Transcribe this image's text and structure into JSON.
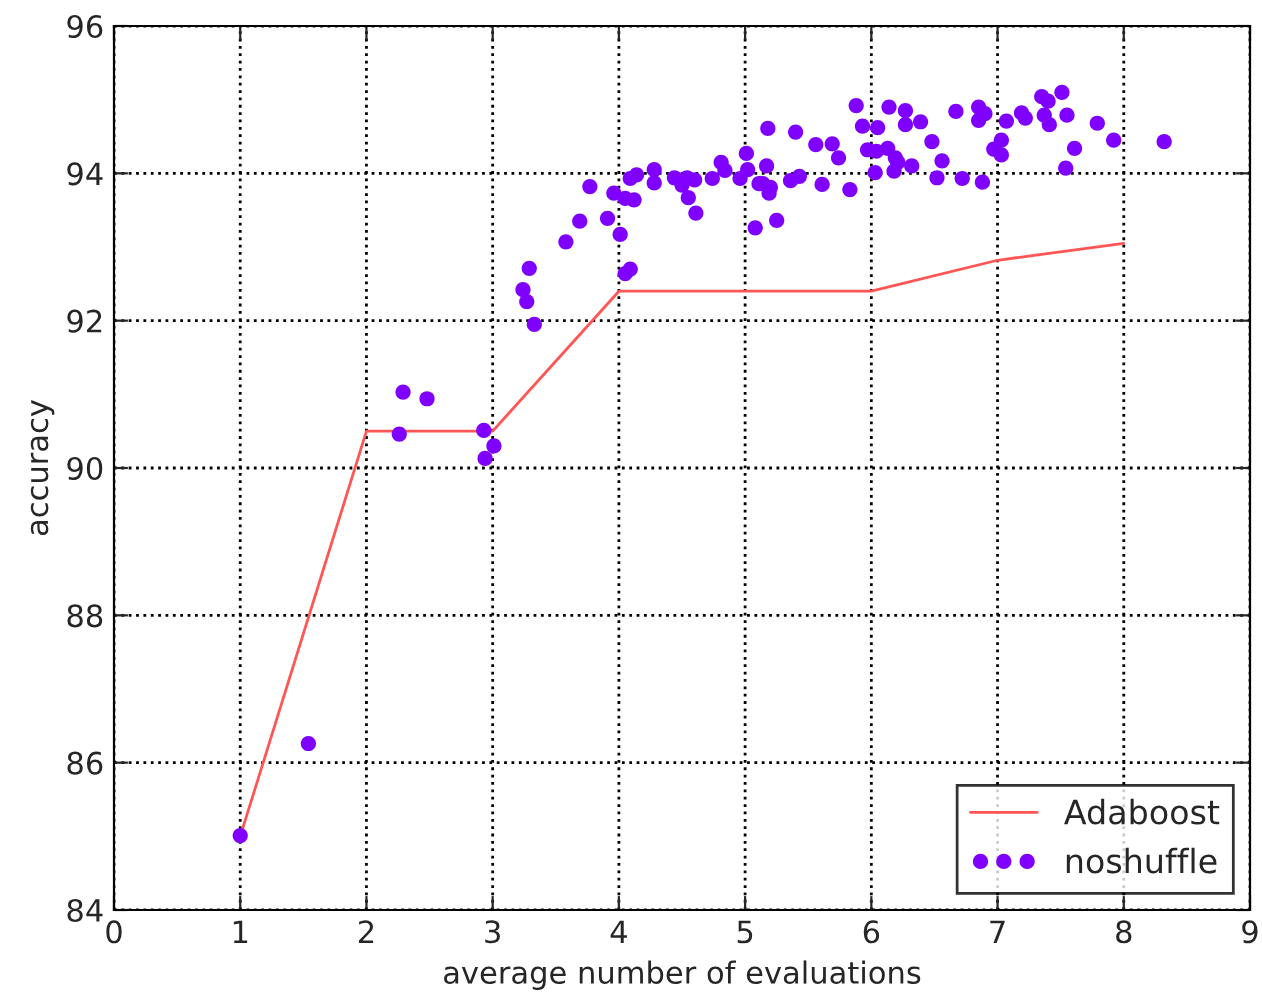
{
  "chart_data": {
    "type": "scatter",
    "xlabel": "average number of evaluations",
    "ylabel": "accuracy",
    "xlim": [
      0,
      9
    ],
    "ylim": [
      84,
      96
    ],
    "xticks": [
      0,
      1,
      2,
      3,
      4,
      5,
      6,
      7,
      8,
      9
    ],
    "yticks": [
      84,
      86,
      88,
      90,
      92,
      94,
      96
    ],
    "grid": true,
    "legend": "bottom right",
    "marker": "circle",
    "series": [
      {
        "name": "Adaboost",
        "type": "line",
        "color": "#ff5555",
        "line_style": "solid",
        "marker": "none",
        "x": [
          1,
          2,
          3,
          4,
          6,
          7,
          8
        ],
        "values": [
          85.0,
          90.5,
          90.5,
          92.4,
          92.4,
          92.82,
          93.05
        ]
      },
      {
        "name": "noshuffle",
        "color": "#7f00ff",
        "x": [
          1.0,
          1.54,
          2.29,
          2.48,
          2.26,
          2.93,
          3.01,
          2.94,
          3.29,
          3.24,
          3.27,
          3.33,
          3.58,
          3.69,
          3.77,
          3.91,
          4.01,
          4.05,
          4.09,
          3.96,
          4.09,
          4.14,
          4.05,
          4.12,
          4.28,
          4.28,
          4.44,
          4.5,
          4.54,
          4.6,
          4.55,
          4.61,
          4.74,
          4.81,
          4.84,
          4.96,
          5.01,
          5.02,
          5.08,
          5.11,
          5.17,
          5.18,
          5.2,
          5.19,
          5.14,
          5.25,
          5.36,
          5.4,
          5.43,
          5.56,
          5.61,
          5.69,
          5.74,
          5.83,
          5.88,
          5.93,
          5.97,
          6.04,
          6.03,
          6.05,
          6.14,
          6.13,
          6.19,
          6.18,
          6.21,
          6.27,
          6.27,
          6.32,
          6.39,
          6.48,
          6.52,
          6.56,
          6.67,
          6.72,
          6.85,
          6.85,
          6.9,
          6.88,
          6.97,
          7.03,
          7.03,
          7.07,
          7.19,
          7.22,
          7.35,
          7.4,
          7.37,
          7.41,
          7.51,
          7.55,
          7.54,
          7.61,
          7.79,
          7.92,
          8.32
        ],
        "values": [
          85.01,
          86.26,
          91.03,
          90.94,
          90.46,
          90.51,
          90.3,
          90.13,
          92.71,
          92.42,
          92.26,
          91.95,
          93.07,
          93.35,
          93.82,
          93.39,
          93.17,
          92.64,
          92.7,
          93.73,
          93.93,
          93.98,
          93.66,
          93.64,
          94.05,
          93.87,
          93.94,
          93.84,
          93.94,
          93.91,
          93.67,
          93.46,
          93.93,
          94.15,
          94.04,
          93.93,
          94.27,
          94.05,
          93.26,
          93.86,
          94.1,
          94.61,
          93.81,
          93.73,
          93.86,
          93.36,
          93.9,
          94.56,
          93.96,
          94.39,
          93.85,
          94.4,
          94.21,
          93.78,
          94.92,
          94.64,
          94.32,
          94.3,
          94.01,
          94.62,
          94.9,
          94.34,
          94.21,
          94.03,
          94.15,
          94.85,
          94.66,
          94.1,
          94.7,
          94.43,
          93.94,
          94.17,
          94.84,
          93.93,
          94.9,
          94.72,
          94.81,
          93.88,
          94.33,
          94.45,
          94.25,
          94.71,
          94.82,
          94.75,
          95.04,
          94.98,
          94.79,
          94.66,
          95.1,
          94.79,
          94.07,
          94.34,
          94.68,
          94.45,
          94.43
        ]
      }
    ]
  }
}
